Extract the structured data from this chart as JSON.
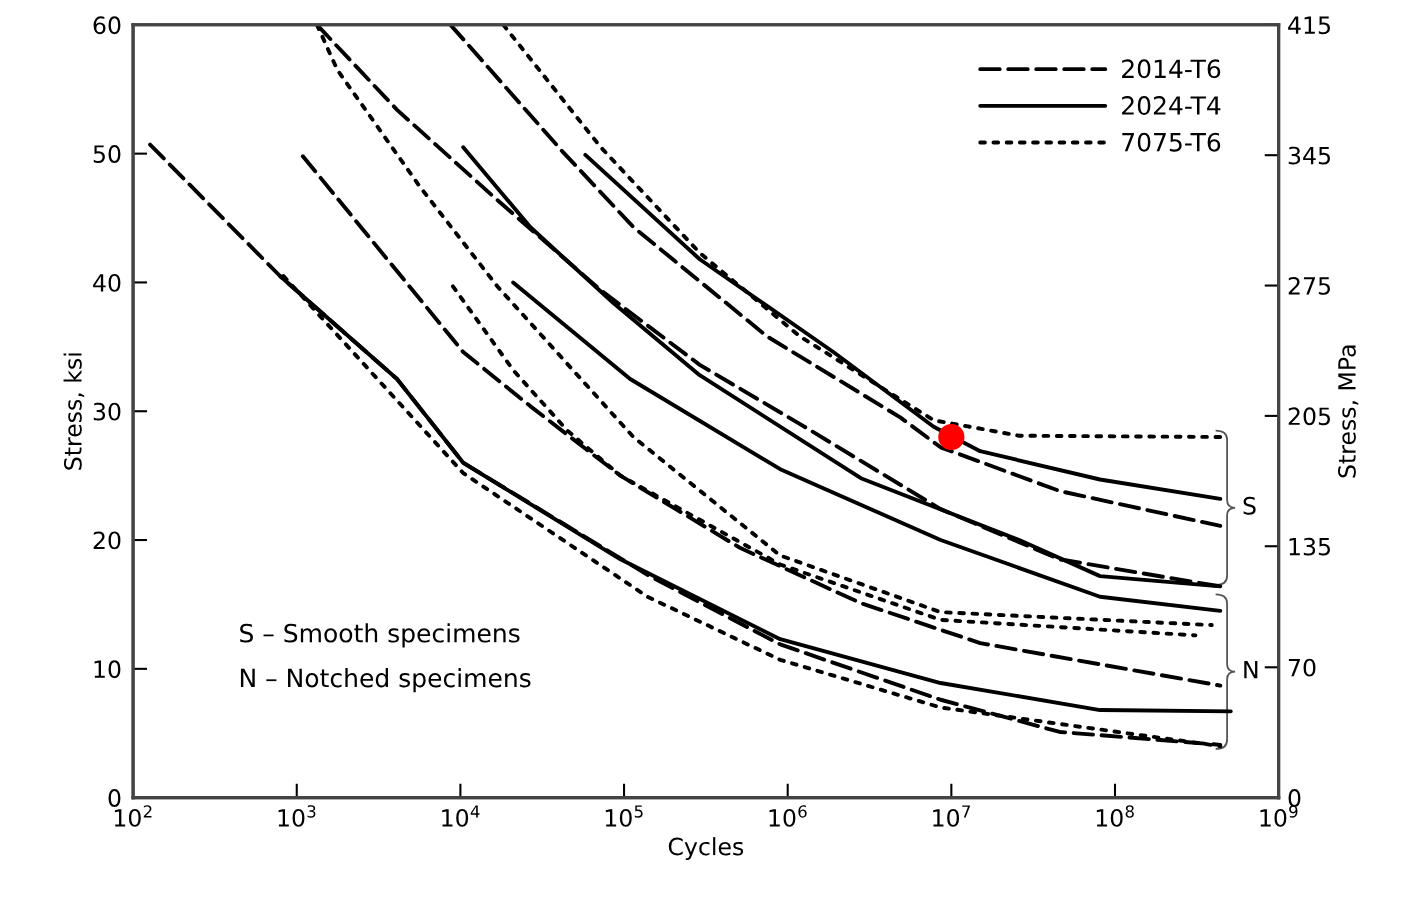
{
  "chart_data": {
    "type": "line",
    "xlabel": "Cycles",
    "ylabel": "Stress, ksi",
    "y2label": "Stress, MPa",
    "log": "x",
    "xlim": [
      100,
      1000000000
    ],
    "ylim": [
      0,
      60
    ],
    "y2lim": [
      0,
      415
    ],
    "xticks": [
      {
        "value": 100,
        "label": "10$^{2}$"
      },
      {
        "value": 1000,
        "label": "10$^{3}$"
      },
      {
        "value": 10000,
        "label": "10$^{4}$"
      },
      {
        "value": 100000,
        "label": "10$^{5}$"
      },
      {
        "value": 1000000,
        "label": "10$^{6}$"
      },
      {
        "value": 10000000,
        "label": "10$^{7}$"
      },
      {
        "value": 100000000,
        "label": "10$^{8}$"
      },
      {
        "value": 1000000000,
        "label": "10$^{9}$"
      }
    ],
    "yticks": [
      0,
      10,
      20,
      30,
      40,
      50,
      60
    ],
    "y2ticks": [
      0,
      70,
      135,
      205,
      275,
      345,
      415
    ],
    "grid": false,
    "legend": "top right",
    "marker": "none",
    "series": [
      {
        "name": "2014-T6",
        "color": "#000000",
        "line_style": "dashed",
        "x": [
          8700,
          42500,
          114000,
          750000,
          4900000,
          8600000,
          46000000,
          440000000
        ],
        "values": [
          60,
          50.1,
          44.3,
          35.8,
          29.5,
          27.2,
          23.8,
          21.1
        ]
      },
      {
        "color": "#000000",
        "line_style": "dashed",
        "x": [
          1330,
          4100,
          16800,
          72000,
          290000,
          1190000,
          8600000,
          46000000,
          440000000
        ],
        "values": [
          60,
          53.4,
          46.4,
          39.4,
          33.6,
          29.0,
          22.4,
          18.5,
          16.4
        ]
      },
      {
        "color": "#000000",
        "line_style": "dashed",
        "x": [
          1090,
          10400,
          26700,
          95000,
          510000,
          2800000,
          15000000,
          440000000
        ],
        "values": [
          49.8,
          34.6,
          30.4,
          25.0,
          19.4,
          15.1,
          12.0,
          8.7
        ]
      },
      {
        "color": "#000000",
        "line_style": "dashed",
        "x": [
          127,
          790,
          4100,
          10400,
          139000,
          900000,
          8600000,
          46000000,
          440000000
        ],
        "values": [
          50.7,
          40.5,
          32.5,
          26.0,
          17.3,
          11.9,
          7.6,
          5.1,
          4.1
        ]
      },
      {
        "name": "2024-T4",
        "color": "#000000",
        "line_style": "solid",
        "x": [
          58000,
          290000,
          1900000,
          7800000,
          15000000,
          81000000,
          440000000
        ],
        "values": [
          49.9,
          41.8,
          34.6,
          28.8,
          26.9,
          24.7,
          23.2
        ]
      },
      {
        "color": "#000000",
        "line_style": "solid",
        "x": [
          10400,
          26700,
          86000,
          290000,
          2800000,
          26000000,
          81000000,
          440000000
        ],
        "values": [
          50.5,
          44.3,
          38.4,
          32.8,
          24.8,
          20.0,
          17.2,
          16.4
        ]
      },
      {
        "color": "#000000",
        "line_style": "solid",
        "x": [
          21000,
          109000,
          900000,
          8600000,
          81000000,
          440000000
        ],
        "values": [
          40.0,
          32.5,
          25.5,
          20.0,
          15.6,
          14.5
        ]
      },
      {
        "color": "#000000",
        "line_style": "solid",
        "x": [
          790,
          4100,
          10400,
          95000,
          900000,
          8600000,
          81000000,
          510000000
        ],
        "values": [
          40.5,
          32.5,
          26.0,
          18.5,
          12.3,
          8.9,
          6.8,
          6.7
        ]
      },
      {
        "name": "7075-T6",
        "color": "#000000",
        "line_style": "dotted",
        "x": [
          18300,
          72000,
          290000,
          1190000,
          7800000,
          26000000,
          440000000
        ],
        "values": [
          60,
          50.5,
          42.3,
          35.8,
          29.3,
          28.1,
          28.0
        ]
      },
      {
        "color": "#000000",
        "line_style": "dotted",
        "x": [
          1330,
          1770,
          5680,
          16800,
          114000,
          900000,
          8600000,
          390000000
        ],
        "values": [
          60,
          56.5,
          47.4,
          39.7,
          28.0,
          18.8,
          14.4,
          13.4
        ]
      },
      {
        "color": "#000000",
        "line_style": "dotted",
        "x": [
          9000,
          21000,
          45000,
          95000,
          900000,
          8600000,
          310000000
        ],
        "values": [
          39.7,
          33.2,
          28.5,
          25.0,
          18.1,
          13.8,
          12.6
        ]
      },
      {
        "color": "#000000",
        "line_style": "dotted",
        "x": [
          830,
          10400,
          139000,
          900000,
          8600000,
          440000000
        ],
        "values": [
          40.5,
          25.2,
          15.6,
          10.7,
          7.0,
          4.0
        ]
      },
      {
        "type": "scatter",
        "color": "#ff0000",
        "marker": "circle",
        "x": [
          10000000
        ],
        "values": [
          28
        ]
      }
    ],
    "annotations": [
      "S – Smooth specimens",
      "N – Notched specimens",
      "S",
      "N"
    ]
  }
}
